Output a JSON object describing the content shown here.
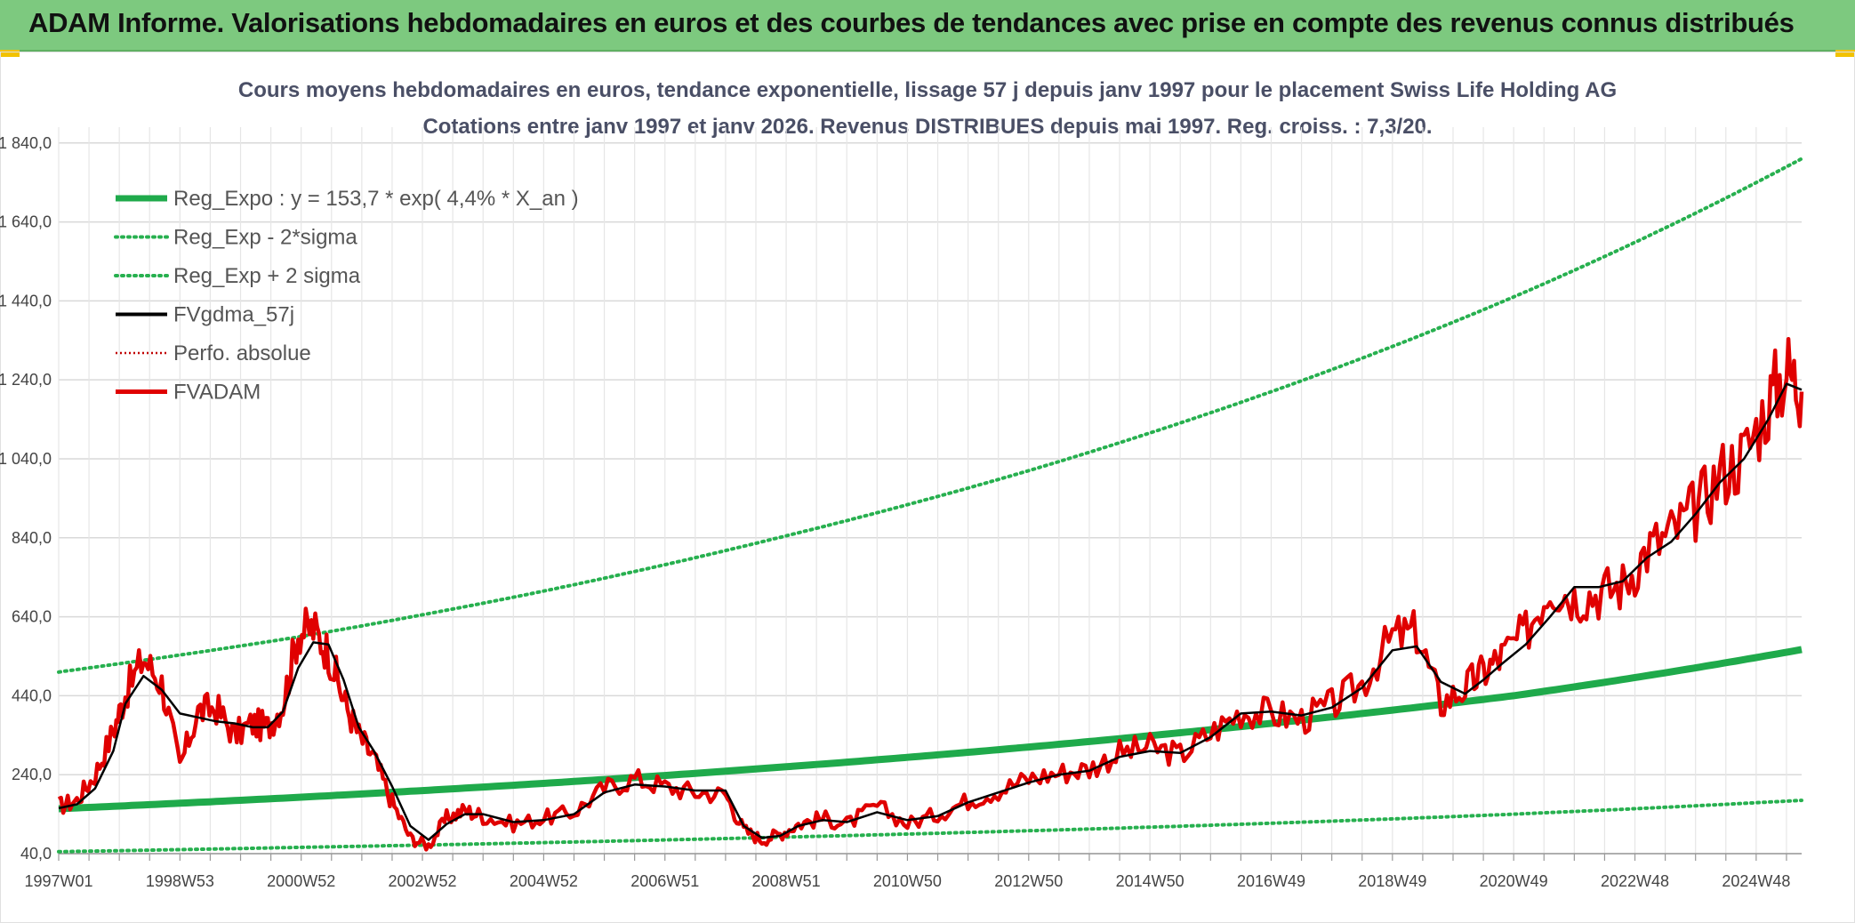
{
  "banner": {
    "title": "ADAM Informe. Valorisations hebdomadaires en euros et des courbes de tendances avec prise en compte des revenus connus distribués"
  },
  "colors": {
    "banner_bg": "#7dc97f",
    "reg_green": "#1faa4b",
    "band_green": "#27b04f",
    "fvgdma": "#000000",
    "fvadam": "#e00000",
    "perfo": "#c00000",
    "grid": "#d9d9d9"
  },
  "chart_data": {
    "type": "line",
    "title": "Cours moyens hebdomadaires en euros, tendance exponentielle, lissage 57 j depuis janv 1997 pour le placement Swiss Life Holding AG",
    "subtitle": "Cotations entre janv 1997 et janv 2026. Revenus DISTRIBUES depuis mai 1997. Reg. croiss. : 7,3/20.",
    "xlim": [
      1997.0,
      2025.75
    ],
    "ylim": [
      40,
      1880
    ],
    "y_ticks": [
      40,
      240,
      440,
      640,
      840,
      1040,
      1240,
      1440,
      1640,
      1840
    ],
    "y_tick_labels": [
      "40,0",
      "240,0",
      "440,0",
      "640,0",
      "840,0",
      "1 040,0",
      "1 240,0",
      "1 440,0",
      "1 640,0",
      "1 840,0"
    ],
    "x_tick_positions": [
      1997.0,
      1999.0,
      2001.0,
      2003.0,
      2005.0,
      2007.0,
      2009.0,
      2011.0,
      2013.0,
      2015.0,
      2017.0,
      2019.0,
      2021.0,
      2023.0,
      2025.0
    ],
    "x_tick_labels": [
      "1997W01",
      "1998W53",
      "2000W52",
      "2002W52",
      "2004W52",
      "2006W51",
      "2008W51",
      "2010W50",
      "2012W50",
      "2014W50",
      "2016W49",
      "2018W49",
      "2020W49",
      "2022W48",
      "2024W48"
    ],
    "legend": [
      {
        "label": "Reg_Expo : y = 153,7 * exp( 4,4% *  X_an )",
        "style": "thick"
      },
      {
        "label": "Reg_Exp - 2*sigma",
        "style": "dotted-green"
      },
      {
        "label": "Reg_Exp + 2 sigma",
        "style": "dotted-green"
      },
      {
        "label": "FVgdma_57j",
        "style": "black"
      },
      {
        "label": "Perfo. absolue",
        "style": "dotted-red"
      },
      {
        "label": "FVADAM",
        "style": "red"
      }
    ],
    "series": [
      {
        "name": "Reg_Expo",
        "x": [
          1997.0,
          2001.0,
          2005.0,
          2009.0,
          2013.0,
          2017.0,
          2021.0,
          2025.75
        ],
        "values": [
          153.7,
          183,
          218,
          260,
          310,
          370,
          440,
          557
        ]
      },
      {
        "name": "Reg_Exp - 2*sigma",
        "x": [
          1997.0,
          2001.0,
          2005.0,
          2009.0,
          2013.0,
          2017.0,
          2021.0,
          2025.75
        ],
        "values": [
          45,
          56,
          68,
          82,
          98,
          117,
          140,
          175
        ]
      },
      {
        "name": "Reg_Exp + 2 sigma",
        "x": [
          1997.0,
          2001.0,
          2005.0,
          2009.0,
          2013.0,
          2017.0,
          2021.0,
          2025.75
        ],
        "values": [
          500,
          590,
          705,
          845,
          1010,
          1210,
          1450,
          1800
        ]
      },
      {
        "name": "FVgdma_57j",
        "x": [
          1997.0,
          1997.3,
          1997.6,
          1997.9,
          1998.1,
          1998.4,
          1998.7,
          1999.0,
          1999.3,
          1999.6,
          1999.9,
          2000.2,
          2000.45,
          2000.7,
          2000.95,
          2001.2,
          2001.45,
          2001.7,
          2001.95,
          2002.2,
          2002.5,
          2002.8,
          2003.1,
          2003.4,
          2003.7,
          2004.0,
          2004.5,
          2005.0,
          2005.5,
          2006.0,
          2006.5,
          2007.0,
          2007.5,
          2008.0,
          2008.3,
          2008.6,
          2008.9,
          2009.2,
          2009.6,
          2010.0,
          2010.5,
          2011.0,
          2011.5,
          2012.0,
          2012.5,
          2013.0,
          2013.5,
          2014.0,
          2014.5,
          2015.0,
          2015.5,
          2016.0,
          2016.5,
          2017.0,
          2017.5,
          2018.0,
          2018.5,
          2019.0,
          2019.4,
          2019.8,
          2020.2,
          2020.5,
          2020.8,
          2021.2,
          2021.6,
          2022.0,
          2022.4,
          2022.8,
          2023.2,
          2023.6,
          2024.0,
          2024.4,
          2024.8,
          2025.2,
          2025.5,
          2025.75
        ],
        "values": [
          155,
          165,
          205,
          300,
          420,
          490,
          455,
          395,
          385,
          375,
          370,
          360,
          360,
          400,
          510,
          575,
          570,
          480,
          360,
          300,
          210,
          110,
          75,
          115,
          140,
          140,
          120,
          125,
          140,
          195,
          215,
          210,
          200,
          200,
          110,
          80,
          85,
          110,
          125,
          120,
          145,
          125,
          135,
          170,
          195,
          220,
          240,
          250,
          285,
          300,
          295,
          335,
          395,
          400,
          390,
          410,
          460,
          555,
          565,
          475,
          445,
          480,
          520,
          570,
          640,
          715,
          715,
          730,
          790,
          830,
          900,
          980,
          1040,
          1140,
          1230,
          1215
        ]
      },
      {
        "name": "FVADAM",
        "x": [
          1997.0,
          1997.3,
          1997.6,
          1997.9,
          1998.1,
          1998.4,
          1998.7,
          1999.0,
          1999.3,
          1999.6,
          1999.9,
          2000.2,
          2000.45,
          2000.7,
          2000.95,
          2001.2,
          2001.45,
          2001.7,
          2001.95,
          2002.2,
          2002.5,
          2002.8,
          2003.1,
          2003.4,
          2003.7,
          2004.0,
          2004.5,
          2005.0,
          2005.5,
          2006.0,
          2006.5,
          2007.0,
          2007.5,
          2008.0,
          2008.3,
          2008.6,
          2008.9,
          2009.2,
          2009.6,
          2010.0,
          2010.5,
          2011.0,
          2011.5,
          2012.0,
          2012.5,
          2013.0,
          2013.5,
          2014.0,
          2014.5,
          2015.0,
          2015.5,
          2016.0,
          2016.5,
          2017.0,
          2017.5,
          2018.0,
          2018.5,
          2019.0,
          2019.4,
          2019.8,
          2020.2,
          2020.5,
          2020.8,
          2021.2,
          2021.6,
          2022.0,
          2022.4,
          2022.8,
          2023.2,
          2023.6,
          2024.0,
          2024.4,
          2024.8,
          2025.2,
          2025.5,
          2025.75
        ],
        "values": [
          160,
          175,
          240,
          350,
          445,
          535,
          470,
          260,
          400,
          410,
          340,
          370,
          360,
          420,
          600,
          610,
          550,
          430,
          340,
          280,
          170,
          80,
          60,
          130,
          150,
          135,
          115,
          130,
          145,
          205,
          230,
          210,
          195,
          190,
          100,
          75,
          90,
          115,
          130,
          115,
          160,
          115,
          140,
          175,
          200,
          230,
          245,
          255,
          295,
          310,
          290,
          345,
          400,
          395,
          380,
          415,
          470,
          590,
          600,
          420,
          460,
          500,
          540,
          600,
          720,
          690,
          700,
          720,
          810,
          850,
          910,
          1000,
          1050,
          1180,
          1270,
          1210
        ]
      }
    ]
  }
}
